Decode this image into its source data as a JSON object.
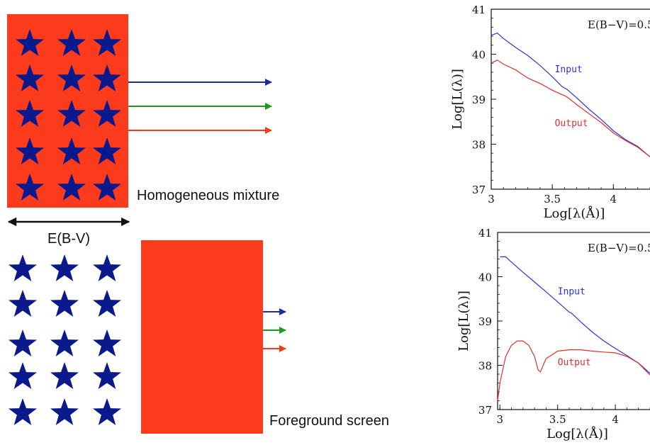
{
  "diagram": {
    "colors": {
      "dust": "#fc3a1c",
      "star": "#0a1a8c",
      "arrow_blue": "#1a2f9a",
      "arrow_green": "#1b9a1b",
      "arrow_red": "#f03a1a",
      "width_arrow": "#111111"
    },
    "homogeneous_label": "Homogeneous mixture",
    "ebv_label": "E(B-V)",
    "foreground_label": "Foreground screen"
  },
  "chart_data": [
    {
      "type": "line",
      "ebv": "E(B−V)=0.5",
      "xlabel": "Log[λ(Å)]",
      "ylabel": "Log[L(λ)]",
      "xlim": [
        3,
        4.3
      ],
      "ylim": [
        37,
        41
      ],
      "xticks": [
        "3",
        "3.5",
        "4"
      ],
      "yticks": [
        "37",
        "38",
        "39",
        "40",
        "41"
      ],
      "series": [
        {
          "name": "Input",
          "color": "#2b35d8",
          "x": [
            3.0,
            3.05,
            3.1,
            3.2,
            3.3,
            3.4,
            3.5,
            3.58,
            3.6,
            3.62,
            3.7,
            3.8,
            3.9,
            4.0,
            4.1,
            4.2,
            4.3
          ],
          "y": [
            40.42,
            40.47,
            40.35,
            40.15,
            39.97,
            39.75,
            39.5,
            39.28,
            39.25,
            39.22,
            39.03,
            38.78,
            38.55,
            38.3,
            38.1,
            37.95,
            37.72
          ]
        },
        {
          "name": "Output",
          "color": "#e03030",
          "x": [
            3.0,
            3.05,
            3.1,
            3.2,
            3.3,
            3.4,
            3.5,
            3.58,
            3.6,
            3.62,
            3.7,
            3.8,
            3.9,
            4.0,
            4.1,
            4.2,
            4.3
          ],
          "y": [
            39.8,
            39.87,
            39.78,
            39.65,
            39.47,
            39.35,
            39.2,
            39.1,
            39.08,
            39.05,
            38.88,
            38.68,
            38.48,
            38.25,
            38.08,
            37.93,
            37.72
          ]
        }
      ]
    },
    {
      "type": "line",
      "ebv": "E(B−V)=0.5",
      "xlabel": "Log[λ(Å)]",
      "ylabel": "Log[L(λ)]",
      "xlim": [
        2.98,
        4.3
      ],
      "ylim": [
        37,
        41
      ],
      "xticks": [
        "3",
        "3.5",
        "4"
      ],
      "yticks": [
        "37",
        "38",
        "39",
        "40",
        "41"
      ],
      "series": [
        {
          "name": "Input",
          "color": "#2b35d8",
          "x": [
            3.0,
            3.05,
            3.1,
            3.2,
            3.3,
            3.4,
            3.5,
            3.58,
            3.6,
            3.62,
            3.7,
            3.8,
            3.9,
            4.0,
            4.1,
            4.2,
            4.3
          ],
          "y": [
            40.45,
            40.45,
            40.33,
            40.1,
            39.88,
            39.66,
            39.43,
            39.25,
            39.2,
            39.18,
            38.98,
            38.75,
            38.55,
            38.38,
            38.22,
            38.05,
            37.82
          ]
        },
        {
          "name": "Output",
          "color": "#e03030",
          "x": [
            2.98,
            3.0,
            3.05,
            3.1,
            3.15,
            3.2,
            3.25,
            3.3,
            3.33,
            3.35,
            3.4,
            3.5,
            3.6,
            3.7,
            3.8,
            3.9,
            4.0,
            4.1,
            4.2,
            4.3
          ],
          "y": [
            37.2,
            37.6,
            38.2,
            38.45,
            38.55,
            38.55,
            38.45,
            38.2,
            37.9,
            37.85,
            38.15,
            38.32,
            38.35,
            38.35,
            38.32,
            38.3,
            38.28,
            38.2,
            38.05,
            37.78
          ]
        }
      ]
    }
  ]
}
